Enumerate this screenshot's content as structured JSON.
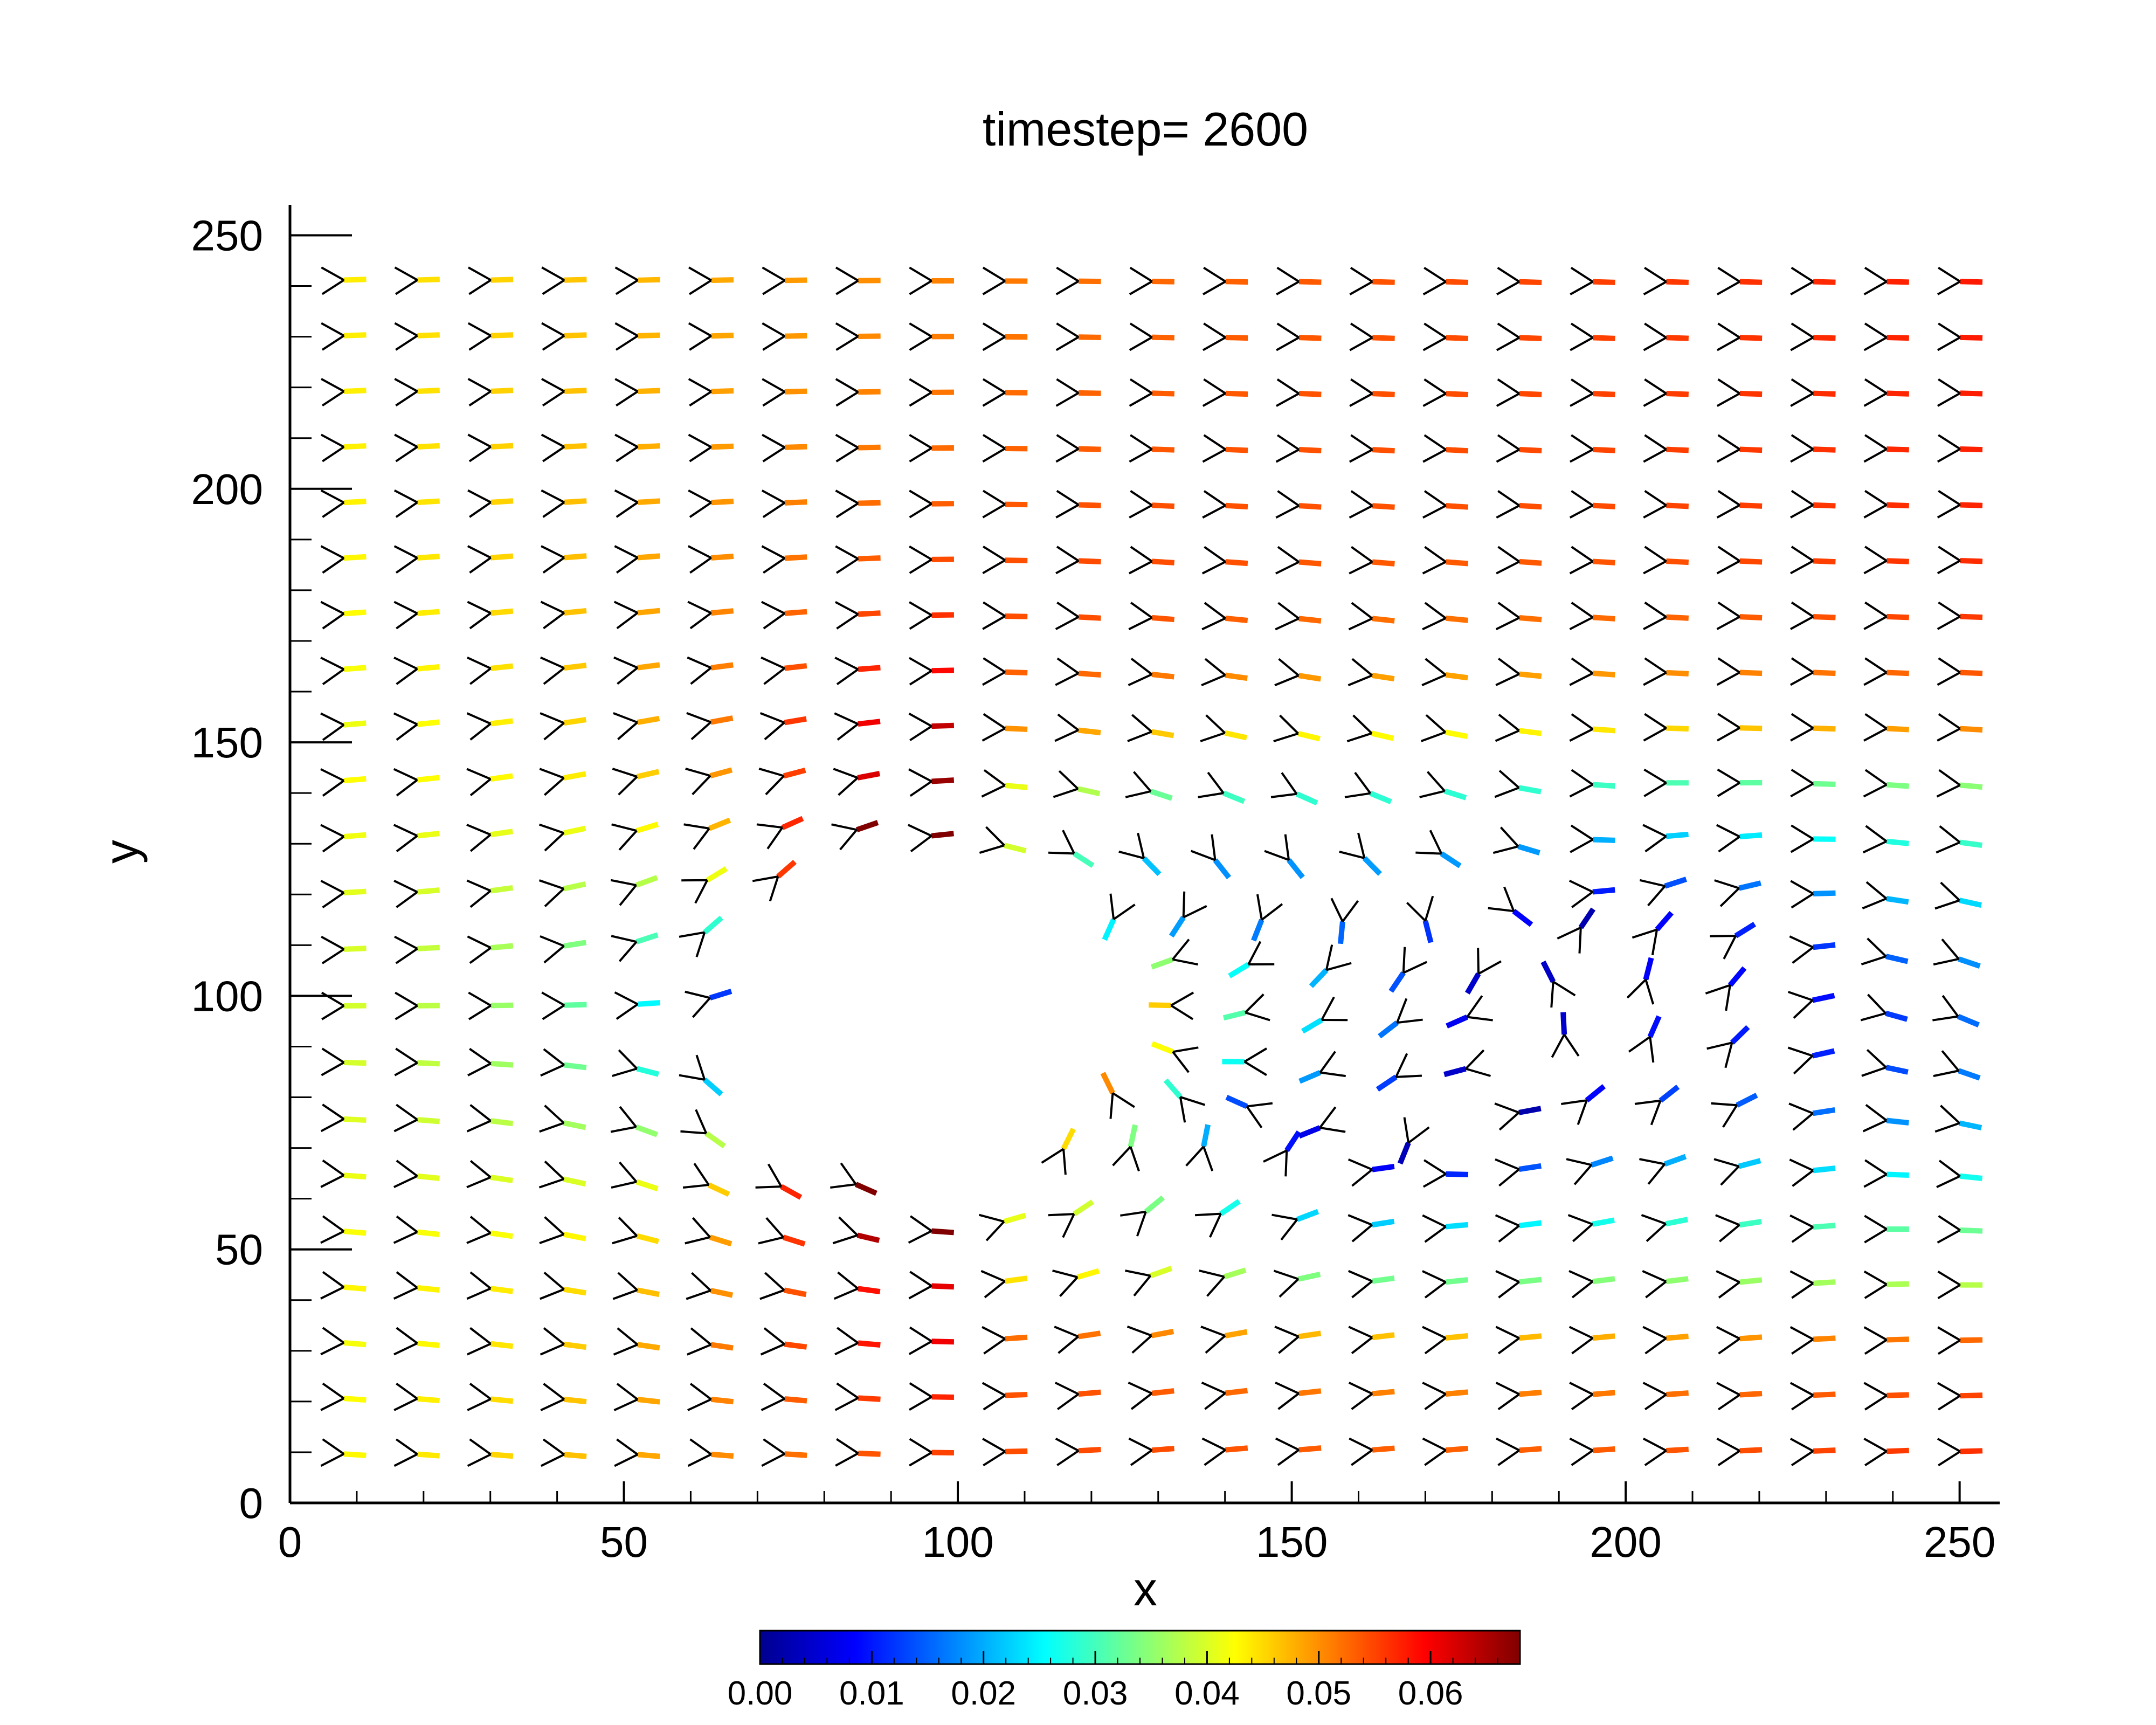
{
  "chart_data": {
    "type": "vector-field",
    "title": "timestep= 2600",
    "xlabel": "x",
    "ylabel": "y",
    "xlim": [
      0,
      256
    ],
    "ylim": [
      0,
      256
    ],
    "x_ticks": [
      0,
      50,
      100,
      150,
      200,
      250
    ],
    "y_ticks": [
      0,
      50,
      100,
      150,
      200,
      250
    ],
    "grid": false,
    "grid_spacing": 11,
    "obstacle": {
      "shape": "circle",
      "center": [
        96,
        96
      ],
      "radius": 32
    },
    "colorbar": {
      "range": [
        0,
        0.068
      ],
      "ticks": [
        "0.00",
        "0.01",
        "0.02",
        "0.03",
        "0.04",
        "0.05",
        "0.06"
      ],
      "colormap": "jet",
      "placement": "bottom"
    }
  }
}
